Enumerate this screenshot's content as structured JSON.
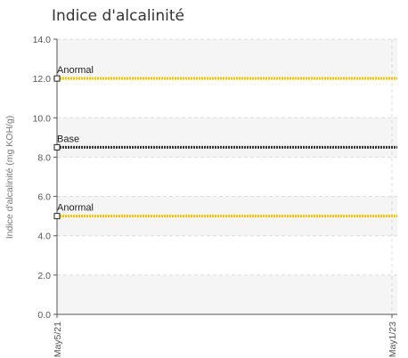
{
  "chart_data": {
    "type": "line",
    "title": "Indice d'alcalinité",
    "ylabel": "Indice d'alcalinité (mg KOH/g)",
    "xlabel": "",
    "ylim": [
      0,
      14
    ],
    "y_ticks": [
      "0.0",
      "2.0",
      "4.0",
      "6.0",
      "8.0",
      "10.0",
      "12.0",
      "14.0"
    ],
    "x_ticks": [
      "May5/21",
      "May1/23"
    ],
    "grid": true,
    "reference_lines": [
      {
        "label": "Anormal",
        "value": 12.0,
        "color": "#f2c400"
      },
      {
        "label": "Base",
        "value": 8.5,
        "color": "#333333"
      },
      {
        "label": "Anormal",
        "value": 5.0,
        "color": "#f2c400"
      }
    ],
    "background_bands": [
      {
        "from": 0,
        "to": 2
      },
      {
        "from": 4,
        "to": 6
      },
      {
        "from": 8,
        "to": 10
      },
      {
        "from": 12,
        "to": 14
      }
    ]
  }
}
